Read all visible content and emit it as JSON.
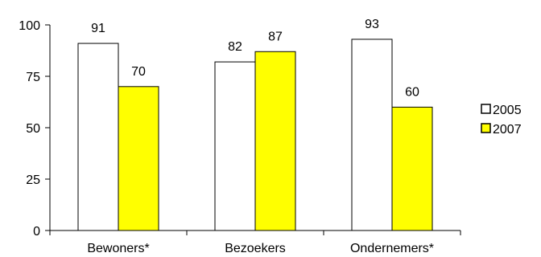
{
  "chart_data": {
    "type": "bar",
    "categories": [
      "Bewoners*",
      "Bezoekers",
      "Ondernemers*"
    ],
    "series": [
      {
        "name": "2005",
        "values": [
          91,
          82,
          93
        ],
        "color": "#ffffff"
      },
      {
        "name": "2007",
        "values": [
          70,
          87,
          60
        ],
        "color": "#ffff00"
      }
    ],
    "ylim": [
      0,
      100
    ],
    "yticks": [
      0,
      25,
      50,
      75,
      100
    ],
    "title": "",
    "xlabel": "",
    "ylabel": "",
    "grid": false,
    "legend_position": "right"
  }
}
